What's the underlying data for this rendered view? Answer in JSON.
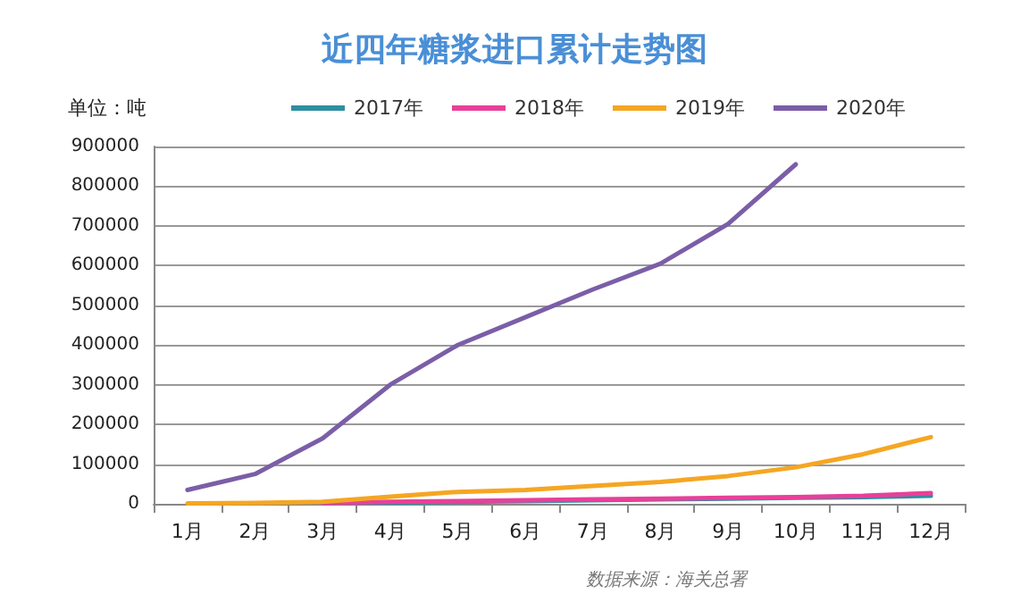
{
  "chart_data": {
    "type": "line",
    "title": "近四年糖浆进口累计走势图",
    "ylabel": "单位：吨",
    "categories": [
      "1月",
      "2月",
      "3月",
      "4月",
      "5月",
      "6月",
      "7月",
      "8月",
      "9月",
      "10月",
      "11月",
      "12月"
    ],
    "series": [
      {
        "name": "2017年",
        "color": "#2e8fa0",
        "values": [
          null,
          null,
          2000,
          3000,
          5000,
          7000,
          9000,
          11000,
          13000,
          15000,
          17000,
          20000
        ]
      },
      {
        "name": "2018年",
        "color": "#e8409a",
        "values": [
          null,
          null,
          2000,
          5000,
          7000,
          9000,
          11000,
          13000,
          15000,
          17000,
          20000,
          27000
        ]
      },
      {
        "name": "2019年",
        "color": "#f5a623",
        "values": [
          1000,
          2000,
          5000,
          18000,
          30000,
          35000,
          45000,
          55000,
          70000,
          92000,
          125000,
          168000
        ]
      },
      {
        "name": "2020年",
        "color": "#7b5ea7",
        "values": [
          35000,
          75000,
          165000,
          300000,
          400000,
          470000,
          540000,
          605000,
          705000,
          855000,
          null,
          null
        ]
      }
    ],
    "ylim": [
      0,
      900000
    ],
    "yticks": [
      0,
      100000,
      200000,
      300000,
      400000,
      500000,
      600000,
      700000,
      800000,
      900000
    ],
    "grid": "y",
    "legend": "top",
    "marker": "none",
    "line_style": "solid",
    "annotations": [
      "数据来源：海关总署"
    ]
  }
}
